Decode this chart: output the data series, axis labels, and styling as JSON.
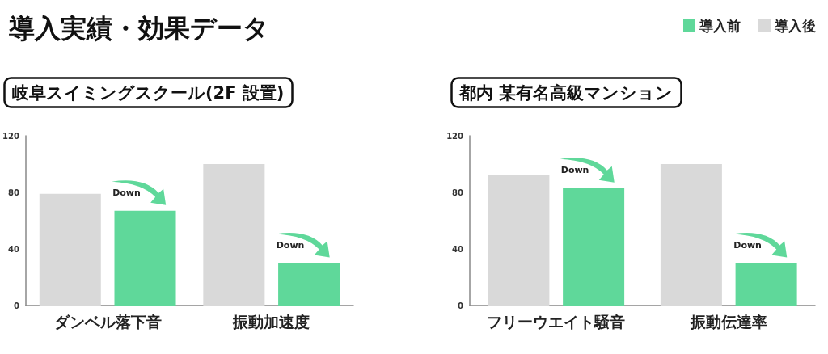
{
  "chart_data": [
    {
      "type": "bar",
      "title": "導入実績・効果データ",
      "subtitle": "岐阜スイミングスクール(2F 設置)",
      "categories": [
        "ダンベル落下音",
        "振動加速度"
      ],
      "series": [
        {
          "color": "#d9d9d9",
          "values": [
            79,
            100
          ]
        },
        {
          "color": "#5fd89a",
          "values": [
            67,
            30
          ]
        }
      ],
      "ylim": [
        0,
        120
      ],
      "yticks": [
        0,
        40,
        80,
        120
      ],
      "grid": false,
      "annotations": [
        "Down",
        "Down"
      ]
    },
    {
      "type": "bar",
      "title": "都内 某有名高級マンション",
      "categories": [
        "フリーウエイト騒音",
        "振動伝達率"
      ],
      "series": [
        {
          "name": "導入後",
          "color": "#d9d9d9",
          "values": [
            92,
            100
          ]
        },
        {
          "name": "導入前",
          "color": "#5fd89a",
          "values": [
            83,
            30
          ]
        }
      ],
      "ylim": [
        0,
        120
      ],
      "yticks": [
        0,
        40,
        80,
        120
      ],
      "grid": false,
      "legend": "top right",
      "annotations": [
        "Down",
        "Down"
      ]
    }
  ]
}
